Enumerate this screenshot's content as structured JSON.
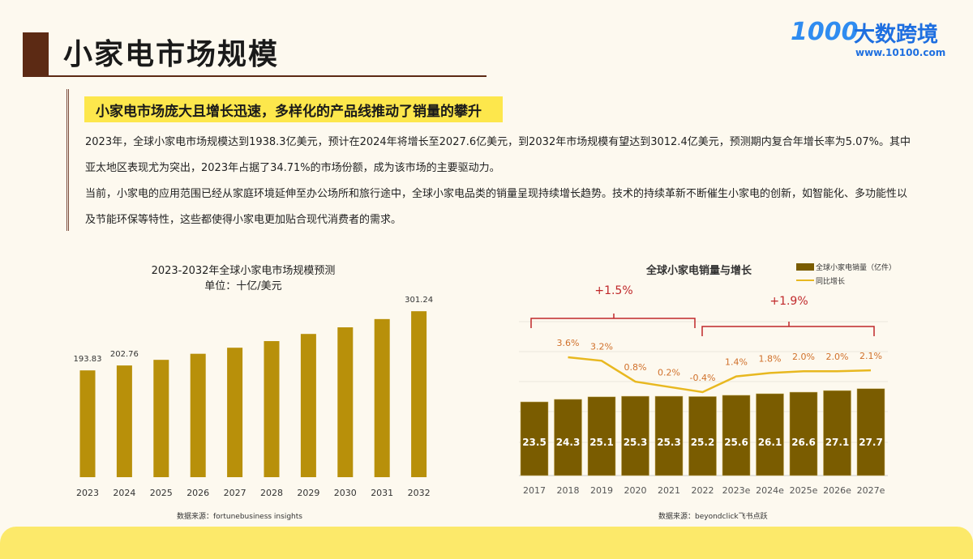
{
  "header": {
    "title": "小家电市场规模",
    "logo_text": "大数跨境",
    "logo_mark": "1000",
    "logo_url": "www.10100.com"
  },
  "highlight": "小家电市场庞大且增长迅速，多样化的产品线推动了销量的攀升",
  "paragraphs": [
    "2023年，全球小家电市场规模达到1938.3亿美元，预计在2024年将增长至2027.6亿美元，到2032年市场规模有望达到3012.4亿美元，预测期内复合年增长率为5.07%。其中亚太地区表现尤为突出，2023年占据了34.71%的市场份额，成为该市场的主要驱动力。",
    "当前，小家电的应用范围已经从家庭环境延伸至办公场所和旅行途中，全球小家电品类的销量呈现持续增长趋势。技术的持续革新不断催生小家电的创新，如智能化、多功能性以及节能环保等特性，这些都使得小家电更加贴合现代消费者的需求。"
  ],
  "chart_data": [
    {
      "type": "bar",
      "title": "2023-2032年全球小家电市场规模预测",
      "subtitle": "单位：十亿/美元",
      "categories": [
        "2023",
        "2024",
        "2025",
        "2026",
        "2027",
        "2028",
        "2029",
        "2030",
        "2031",
        "2032"
      ],
      "values": [
        193.83,
        202.76,
        213,
        224,
        235,
        247,
        260,
        272,
        287,
        301.24
      ],
      "data_labels": {
        "0": "193.83",
        "1": "202.76",
        "9": "301.24"
      },
      "color": "#b8900a",
      "ylim": [
        0,
        320
      ],
      "grid": false,
      "source": "数据来源：fortunebusiness insights"
    },
    {
      "type": "bar+line",
      "title": "全球小家电销量与增长",
      "categories": [
        "2017",
        "2018",
        "2019",
        "2020",
        "2021",
        "2022",
        "2023e",
        "2024e",
        "2025e",
        "2026e",
        "2027e"
      ],
      "series": [
        {
          "name": "全球小家电销量（亿件）",
          "type": "bar",
          "color": "#7a5c00",
          "values": [
            23.5,
            24.3,
            25.1,
            25.3,
            25.3,
            25.2,
            25.6,
            26.1,
            26.6,
            27.1,
            27.7
          ]
        },
        {
          "name": "同比增长",
          "type": "line",
          "color": "#e8b820",
          "label_color": "#d0702a",
          "values": [
            null,
            3.6,
            3.2,
            0.8,
            0.2,
            -0.4,
            1.4,
            1.8,
            2.0,
            2.0,
            2.1
          ],
          "labels": [
            "",
            "3.6%",
            "3.2%",
            "0.8%",
            "0.2%",
            "-0.4%",
            "1.4%",
            "1.8%",
            "2.0%",
            "2.0%",
            "2.1%"
          ]
        }
      ],
      "annotations": [
        {
          "text": "+1.5%",
          "from": "2017",
          "to": "2022"
        },
        {
          "text": "+1.9%",
          "from": "2022",
          "to": "2027e"
        }
      ],
      "annotation_color": "#c0282a",
      "grid": true,
      "legend": "top-right",
      "source": "数据来源：beyondclick飞书点跃"
    }
  ]
}
